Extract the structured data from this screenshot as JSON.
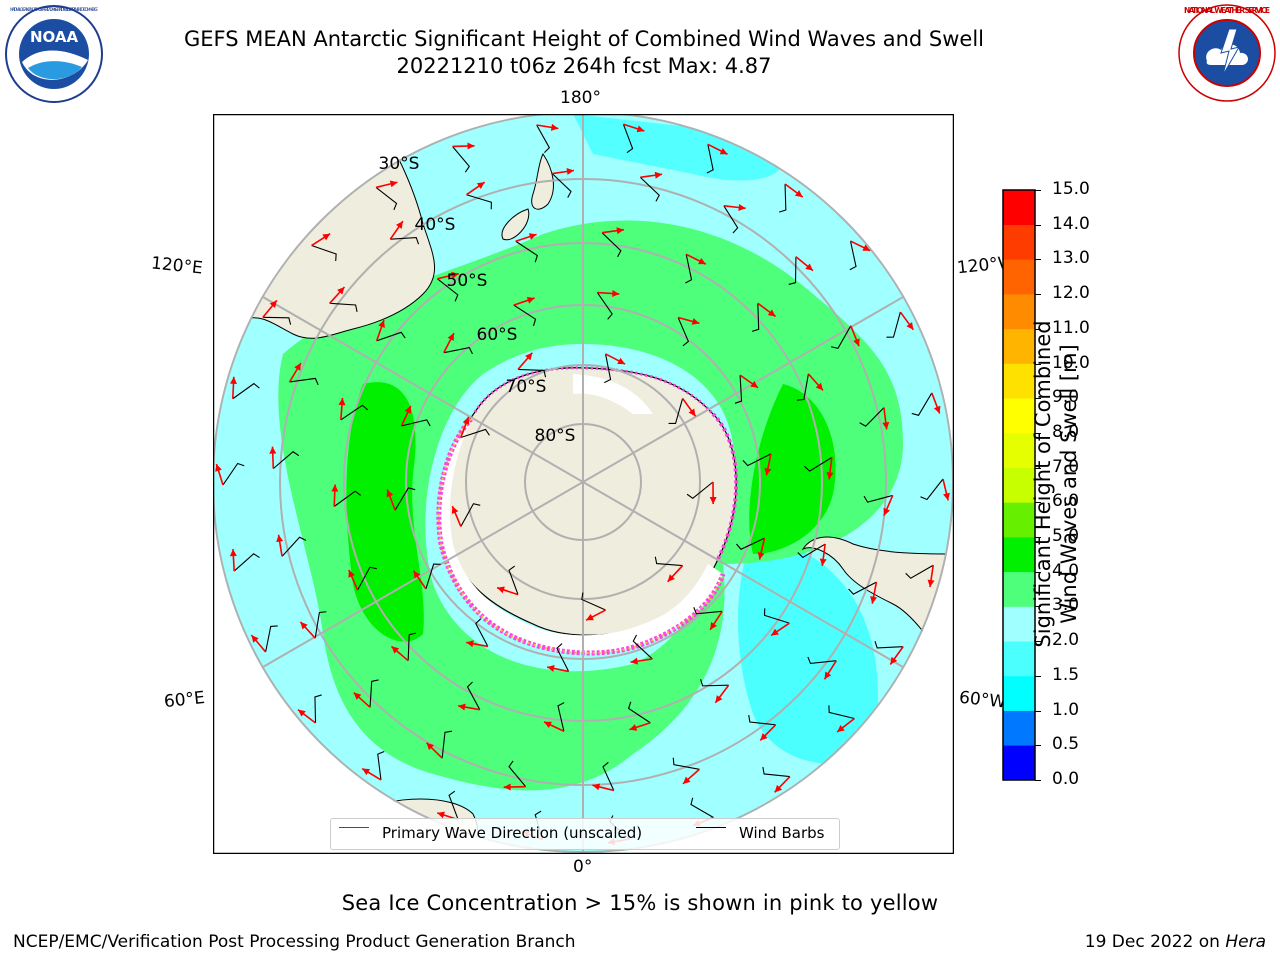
{
  "header": {
    "title_line1": "GEFS MEAN Antarctic Significant Height of Combined Wind Waves and Swell",
    "title_line2": "20221210 t06z 264h fcst   Max: 4.87"
  },
  "logos": {
    "noaa_text": "NOAA",
    "noaa_ring": "NATIONAL OCEANIC AND ATMOSPHERIC ADMINISTRATION · U.S. DEPARTMENT OF COMMERCE",
    "nws_ring": "NATIONAL WEATHER SERVICE"
  },
  "map": {
    "longitude_labels": {
      "top": "180°",
      "bottom": "0°",
      "upper_left": "120°E",
      "upper_right": "120°W",
      "lower_left": "60°E",
      "lower_right": "60°W"
    },
    "latitude_labels": [
      "30°S",
      "40°S",
      "50°S",
      "60°S",
      "70°S",
      "80°S"
    ],
    "legend": {
      "primary_wave": "Primary Wave Direction (unscaled)",
      "wind_barbs": "Wind Barbs"
    },
    "colors": {
      "land": "#efedde",
      "ocean_low": "#a0ffff",
      "ocean_mid": "#4bffff",
      "green_light": "#4dff7a",
      "green": "#00f000",
      "wave_arrow": "#ff0000",
      "sea_ice_pink": "#ff44dd",
      "sea_ice_orange": "#ffb040"
    }
  },
  "colorbar": {
    "label_line1": "Significant Height of Combined",
    "label_line2": "Wind Waves and Swell [m]",
    "ticks": [
      "0.0",
      "0.5",
      "1.0",
      "1.5",
      "2.0",
      "3.0",
      "4.0",
      "5.0",
      "6.0",
      "7.0",
      "8.0",
      "9.0",
      "10.0",
      "11.0",
      "12.0",
      "13.0",
      "14.0",
      "15.0"
    ],
    "colors": [
      "#0000ff",
      "#0078ff",
      "#00ffff",
      "#4bffff",
      "#a0ffff",
      "#4dff7a",
      "#00f000",
      "#66f000",
      "#c8ff00",
      "#e6ff00",
      "#ffff00",
      "#ffe100",
      "#ffb400",
      "#ff8c00",
      "#ff6400",
      "#ff3c00",
      "#ff0000"
    ]
  },
  "caption": "Sea Ice Concentration > 15% is shown in pink to yellow",
  "footer": {
    "left": "NCEP/EMC/Verification Post Processing Product Generation Branch",
    "right_prefix": "19 Dec 2022 on ",
    "right_host": "Hera"
  }
}
